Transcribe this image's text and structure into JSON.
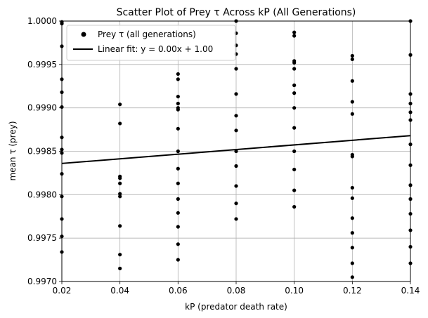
{
  "chart_data": {
    "type": "scatter",
    "title": "Scatter Plot of Prey τ Across kP (All Generations)",
    "xlabel": "kP (predator death rate)",
    "ylabel": "mean τ (prey)",
    "xlim": [
      0.02,
      0.14
    ],
    "ylim": [
      0.997,
      1.0
    ],
    "grid": true,
    "legend_position": "top-left",
    "x_ticks": [
      "0.02",
      "0.04",
      "0.06",
      "0.08",
      "0.10",
      "0.12",
      "0.14"
    ],
    "y_ticks": [
      "0.9970",
      "0.9975",
      "0.9980",
      "0.9985",
      "0.9990",
      "0.9995",
      "1.0000"
    ],
    "series": [
      {
        "name": "Prey τ (all generations)",
        "kind": "scatter",
        "color": "#000000",
        "points": [
          [
            0.02,
            0.99999
          ],
          [
            0.02,
            0.99997
          ],
          [
            0.02,
            0.99971
          ],
          [
            0.02,
            0.99933
          ],
          [
            0.02,
            0.99918
          ],
          [
            0.02,
            0.99901
          ],
          [
            0.02,
            0.99866
          ],
          [
            0.02,
            0.99852
          ],
          [
            0.02,
            0.99848
          ],
          [
            0.02,
            0.99824
          ],
          [
            0.02,
            0.99798
          ],
          [
            0.02,
            0.99772
          ],
          [
            0.02,
            0.99752
          ],
          [
            0.02,
            0.99734
          ],
          [
            0.04,
            0.99904
          ],
          [
            0.04,
            0.99882
          ],
          [
            0.04,
            0.99821
          ],
          [
            0.04,
            0.99819
          ],
          [
            0.04,
            0.99813
          ],
          [
            0.04,
            0.99801
          ],
          [
            0.04,
            0.99798
          ],
          [
            0.04,
            0.99764
          ],
          [
            0.04,
            0.99731
          ],
          [
            0.04,
            0.99715
          ],
          [
            0.06,
            0.99939
          ],
          [
            0.06,
            0.99933
          ],
          [
            0.06,
            0.99913
          ],
          [
            0.06,
            0.99905
          ],
          [
            0.06,
            0.999
          ],
          [
            0.06,
            0.99898
          ],
          [
            0.06,
            0.99876
          ],
          [
            0.06,
            0.9985
          ],
          [
            0.06,
            0.9983
          ],
          [
            0.06,
            0.99813
          ],
          [
            0.06,
            0.99795
          ],
          [
            0.06,
            0.99779
          ],
          [
            0.06,
            0.99763
          ],
          [
            0.06,
            0.99743
          ],
          [
            0.06,
            0.99725
          ],
          [
            0.08,
            1.0
          ],
          [
            0.08,
            0.99986
          ],
          [
            0.08,
            0.99972
          ],
          [
            0.08,
            0.99962
          ],
          [
            0.08,
            0.99945
          ],
          [
            0.08,
            0.99916
          ],
          [
            0.08,
            0.99891
          ],
          [
            0.08,
            0.99874
          ],
          [
            0.08,
            0.9985
          ],
          [
            0.08,
            0.99833
          ],
          [
            0.08,
            0.9981
          ],
          [
            0.08,
            0.9979
          ],
          [
            0.08,
            0.99772
          ],
          [
            0.1,
            0.99987
          ],
          [
            0.1,
            0.99983
          ],
          [
            0.1,
            0.99954
          ],
          [
            0.1,
            0.99952
          ],
          [
            0.1,
            0.99945
          ],
          [
            0.1,
            0.99926
          ],
          [
            0.1,
            0.99917
          ],
          [
            0.1,
            0.999
          ],
          [
            0.1,
            0.99877
          ],
          [
            0.1,
            0.9985
          ],
          [
            0.1,
            0.99829
          ],
          [
            0.1,
            0.99805
          ],
          [
            0.1,
            0.99786
          ],
          [
            0.12,
            0.9996
          ],
          [
            0.12,
            0.99956
          ],
          [
            0.12,
            0.99931
          ],
          [
            0.12,
            0.99907
          ],
          [
            0.12,
            0.99893
          ],
          [
            0.12,
            0.99846
          ],
          [
            0.12,
            0.99844
          ],
          [
            0.12,
            0.99808
          ],
          [
            0.12,
            0.99796
          ],
          [
            0.12,
            0.99773
          ],
          [
            0.12,
            0.99756
          ],
          [
            0.12,
            0.99739
          ],
          [
            0.12,
            0.99721
          ],
          [
            0.12,
            0.99705
          ],
          [
            0.14,
            1.0
          ],
          [
            0.14,
            0.99961
          ],
          [
            0.14,
            0.99916
          ],
          [
            0.14,
            0.99905
          ],
          [
            0.14,
            0.99895
          ],
          [
            0.14,
            0.99886
          ],
          [
            0.14,
            0.99858
          ],
          [
            0.14,
            0.99834
          ],
          [
            0.14,
            0.99811
          ],
          [
            0.14,
            0.99795
          ],
          [
            0.14,
            0.99778
          ],
          [
            0.14,
            0.99759
          ],
          [
            0.14,
            0.9974
          ],
          [
            0.14,
            0.99721
          ]
        ]
      },
      {
        "name": "Linear fit: y = 0.00x + 1.00",
        "kind": "line",
        "color": "#000000",
        "points": [
          [
            0.02,
            0.99836
          ],
          [
            0.14,
            0.99868
          ]
        ]
      }
    ]
  }
}
